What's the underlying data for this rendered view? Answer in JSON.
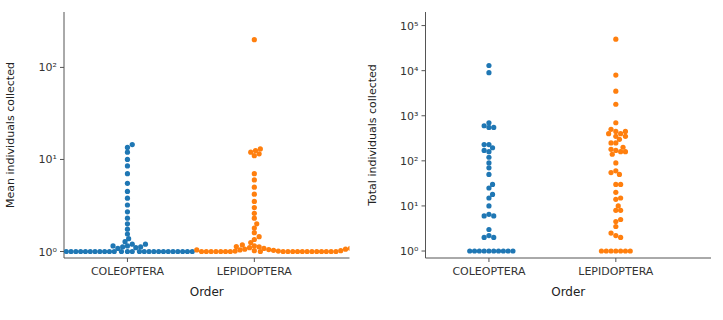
{
  "chart_data": [
    {
      "type": "scatter",
      "log": "y",
      "grid": false,
      "x_label": "Order",
      "y_label": "Mean individuals collected",
      "categories": [
        "COLEOPTERA",
        "LEPIDOPTERA"
      ],
      "ylim": [
        0.85,
        400
      ],
      "yticks": [
        {
          "value": 1,
          "label": "10⁰"
        },
        {
          "value": 10,
          "label": "10¹"
        },
        {
          "value": 100,
          "label": "10²"
        }
      ],
      "series": [
        {
          "color": "#1f77b4",
          "x": [
            "COLEOPTERA",
            "COLEOPTERA",
            "COLEOPTERA",
            "COLEOPTERA",
            "COLEOPTERA",
            "COLEOPTERA",
            "COLEOPTERA",
            "COLEOPTERA",
            "COLEOPTERA",
            "COLEOPTERA",
            "COLEOPTERA",
            "COLEOPTERA",
            "COLEOPTERA",
            "COLEOPTERA",
            "COLEOPTERA",
            "COLEOPTERA",
            "COLEOPTERA",
            "COLEOPTERA",
            "COLEOPTERA",
            "COLEOPTERA",
            "COLEOPTERA",
            "COLEOPTERA",
            "COLEOPTERA",
            "COLEOPTERA",
            "COLEOPTERA",
            "COLEOPTERA",
            "COLEOPTERA",
            "COLEOPTERA",
            "COLEOPTERA",
            "COLEOPTERA",
            "COLEOPTERA",
            "COLEOPTERA",
            "COLEOPTERA",
            "COLEOPTERA",
            "COLEOPTERA",
            "COLEOPTERA",
            "COLEOPTERA",
            "COLEOPTERA",
            "COLEOPTERA",
            "COLEOPTERA",
            "COLEOPTERA",
            "COLEOPTERA",
            "COLEOPTERA",
            "COLEOPTERA",
            "COLEOPTERA",
            "COLEOPTERA",
            "COLEOPTERA",
            "COLEOPTERA",
            "COLEOPTERA",
            "COLEOPTERA",
            "COLEOPTERA",
            "COLEOPTERA"
          ],
          "values": [
            1.15,
            1.2,
            1.12,
            1.1,
            1.08,
            1.0,
            1.0,
            1.0,
            1.0,
            1.0,
            1.0,
            1.0,
            1.0,
            1.0,
            1.0,
            1.0,
            1.0,
            1.0,
            1.0,
            1.0,
            1.0,
            1.0,
            1.0,
            1.0,
            1.0,
            1.0,
            1.0,
            1.0,
            1.0,
            1.0,
            1.0,
            1.0,
            1.12,
            1.15,
            1.2,
            1.28,
            1.38,
            1.55,
            1.75,
            2.0,
            2.3,
            2.7,
            3.2,
            3.8,
            4.5,
            5.5,
            7.0,
            8.5,
            10.0,
            12.0,
            13.5,
            14.5
          ]
        },
        {
          "color": "#ff7f0e",
          "x": [
            "LEPIDOPTERA",
            "LEPIDOPTERA",
            "LEPIDOPTERA",
            "LEPIDOPTERA",
            "LEPIDOPTERA",
            "LEPIDOPTERA",
            "LEPIDOPTERA",
            "LEPIDOPTERA",
            "LEPIDOPTERA",
            "LEPIDOPTERA",
            "LEPIDOPTERA",
            "LEPIDOPTERA",
            "LEPIDOPTERA",
            "LEPIDOPTERA",
            "LEPIDOPTERA",
            "LEPIDOPTERA",
            "LEPIDOPTERA",
            "LEPIDOPTERA",
            "LEPIDOPTERA",
            "LEPIDOPTERA",
            "LEPIDOPTERA",
            "LEPIDOPTERA",
            "LEPIDOPTERA",
            "LEPIDOPTERA",
            "LEPIDOPTERA",
            "LEPIDOPTERA",
            "LEPIDOPTERA",
            "LEPIDOPTERA",
            "LEPIDOPTERA",
            "LEPIDOPTERA",
            "LEPIDOPTERA",
            "LEPIDOPTERA",
            "LEPIDOPTERA",
            "LEPIDOPTERA",
            "LEPIDOPTERA",
            "LEPIDOPTERA",
            "LEPIDOPTERA",
            "LEPIDOPTERA",
            "LEPIDOPTERA",
            "LEPIDOPTERA",
            "LEPIDOPTERA",
            "LEPIDOPTERA",
            "LEPIDOPTERA",
            "LEPIDOPTERA",
            "LEPIDOPTERA",
            "LEPIDOPTERA",
            "LEPIDOPTERA",
            "LEPIDOPTERA",
            "LEPIDOPTERA",
            "LEPIDOPTERA",
            "LEPIDOPTERA",
            "LEPIDOPTERA",
            "LEPIDOPTERA",
            "LEPIDOPTERA",
            "LEPIDOPTERA",
            "LEPIDOPTERA",
            "LEPIDOPTERA",
            "LEPIDOPTERA"
          ],
          "values": [
            1.15,
            1.12,
            1.1,
            1.08,
            1.06,
            1.05,
            1.04,
            1.03,
            1.02,
            1.01,
            1.01,
            1.0,
            1.0,
            1.0,
            1.0,
            1.0,
            1.0,
            1.0,
            1.0,
            1.0,
            1.0,
            1.0,
            1.0,
            1.0,
            1.0,
            1.0,
            1.0,
            1.0,
            1.0,
            1.0,
            1.0,
            1.02,
            1.04,
            1.06,
            1.08,
            1.1,
            1.13,
            1.18,
            1.25,
            1.35,
            1.45,
            1.6,
            1.8,
            2.0,
            2.3,
            2.6,
            3.0,
            3.5,
            4.2,
            5.0,
            6.0,
            7.0,
            11.0,
            11.5,
            12.0,
            12.5,
            13.0,
            200.0
          ]
        }
      ]
    },
    {
      "type": "scatter",
      "log": "y",
      "grid": false,
      "x_label": "Order",
      "y_label": "Total individuals collected",
      "categories": [
        "COLEOPTERA",
        "LEPIDOPTERA"
      ],
      "ylim": [
        0.7,
        200000
      ],
      "yticks": [
        {
          "value": 1,
          "label": "10⁰"
        },
        {
          "value": 10,
          "label": "10¹"
        },
        {
          "value": 100,
          "label": "10²"
        },
        {
          "value": 1000,
          "label": "10³"
        },
        {
          "value": 10000,
          "label": "10⁴"
        },
        {
          "value": 100000,
          "label": "10⁵"
        }
      ],
      "series": [
        {
          "color": "#1f77b4",
          "x": [
            "COLEOPTERA",
            "COLEOPTERA",
            "COLEOPTERA",
            "COLEOPTERA",
            "COLEOPTERA",
            "COLEOPTERA",
            "COLEOPTERA",
            "COLEOPTERA",
            "COLEOPTERA",
            "COLEOPTERA",
            "COLEOPTERA",
            "COLEOPTERA",
            "COLEOPTERA",
            "COLEOPTERA",
            "COLEOPTERA",
            "COLEOPTERA",
            "COLEOPTERA",
            "COLEOPTERA",
            "COLEOPTERA",
            "COLEOPTERA",
            "COLEOPTERA",
            "COLEOPTERA",
            "COLEOPTERA",
            "COLEOPTERA",
            "COLEOPTERA",
            "COLEOPTERA",
            "COLEOPTERA",
            "COLEOPTERA",
            "COLEOPTERA",
            "COLEOPTERA",
            "COLEOPTERA",
            "COLEOPTERA",
            "COLEOPTERA",
            "COLEOPTERA",
            "COLEOPTERA",
            "COLEOPTERA",
            "COLEOPTERA"
          ],
          "values": [
            700.0,
            550.0,
            230.0,
            195.0,
            160.0,
            120.0,
            70.0,
            25.0,
            15.0,
            6.5,
            6.0,
            2.2,
            2.0,
            1.0,
            1.0,
            1.0,
            1.0,
            1.0,
            1.0,
            1.0,
            1.0,
            1.0,
            1.0,
            9000.0,
            13000.0,
            2.0,
            3.0,
            6.0,
            10.0,
            18.0,
            30.0,
            50.0,
            90.0,
            170.0,
            230.0,
            550.0,
            600.0
          ]
        },
        {
          "color": "#ff7f0e",
          "x": [
            "LEPIDOPTERA",
            "LEPIDOPTERA",
            "LEPIDOPTERA",
            "LEPIDOPTERA",
            "LEPIDOPTERA",
            "LEPIDOPTERA",
            "LEPIDOPTERA",
            "LEPIDOPTERA",
            "LEPIDOPTERA",
            "LEPIDOPTERA",
            "LEPIDOPTERA",
            "LEPIDOPTERA",
            "LEPIDOPTERA",
            "LEPIDOPTERA",
            "LEPIDOPTERA",
            "LEPIDOPTERA",
            "LEPIDOPTERA",
            "LEPIDOPTERA",
            "LEPIDOPTERA",
            "LEPIDOPTERA",
            "LEPIDOPTERA",
            "LEPIDOPTERA",
            "LEPIDOPTERA",
            "LEPIDOPTERA",
            "LEPIDOPTERA",
            "LEPIDOPTERA",
            "LEPIDOPTERA",
            "LEPIDOPTERA",
            "LEPIDOPTERA",
            "LEPIDOPTERA",
            "LEPIDOPTERA",
            "LEPIDOPTERA",
            "LEPIDOPTERA",
            "LEPIDOPTERA",
            "LEPIDOPTERA",
            "LEPIDOPTERA",
            "LEPIDOPTERA",
            "LEPIDOPTERA",
            "LEPIDOPTERA",
            "LEPIDOPTERA",
            "LEPIDOPTERA",
            "LEPIDOPTERA",
            "LEPIDOPTERA",
            "LEPIDOPTERA",
            "LEPIDOPTERA",
            "LEPIDOPTERA"
          ],
          "values": [
            450.0,
            350.0,
            170.0,
            60.0,
            50.0,
            30.0,
            14.0,
            8.0,
            4.5,
            2.2,
            2.0,
            1.0,
            1.0,
            1.0,
            1.0,
            1.0,
            1.0,
            1.0,
            2.5,
            3.5,
            5.0,
            8.0,
            10.0,
            15.0,
            20.0,
            30.0,
            55.0,
            90.0,
            160.0,
            250.0,
            400.0,
            700.0,
            1800.0,
            3500.0,
            8000.0,
            50000.0,
            500.0,
            450.0,
            400.0,
            350.0,
            300.0,
            250.0,
            200.0,
            180.0,
            160.0,
            140.0
          ]
        }
      ]
    }
  ]
}
